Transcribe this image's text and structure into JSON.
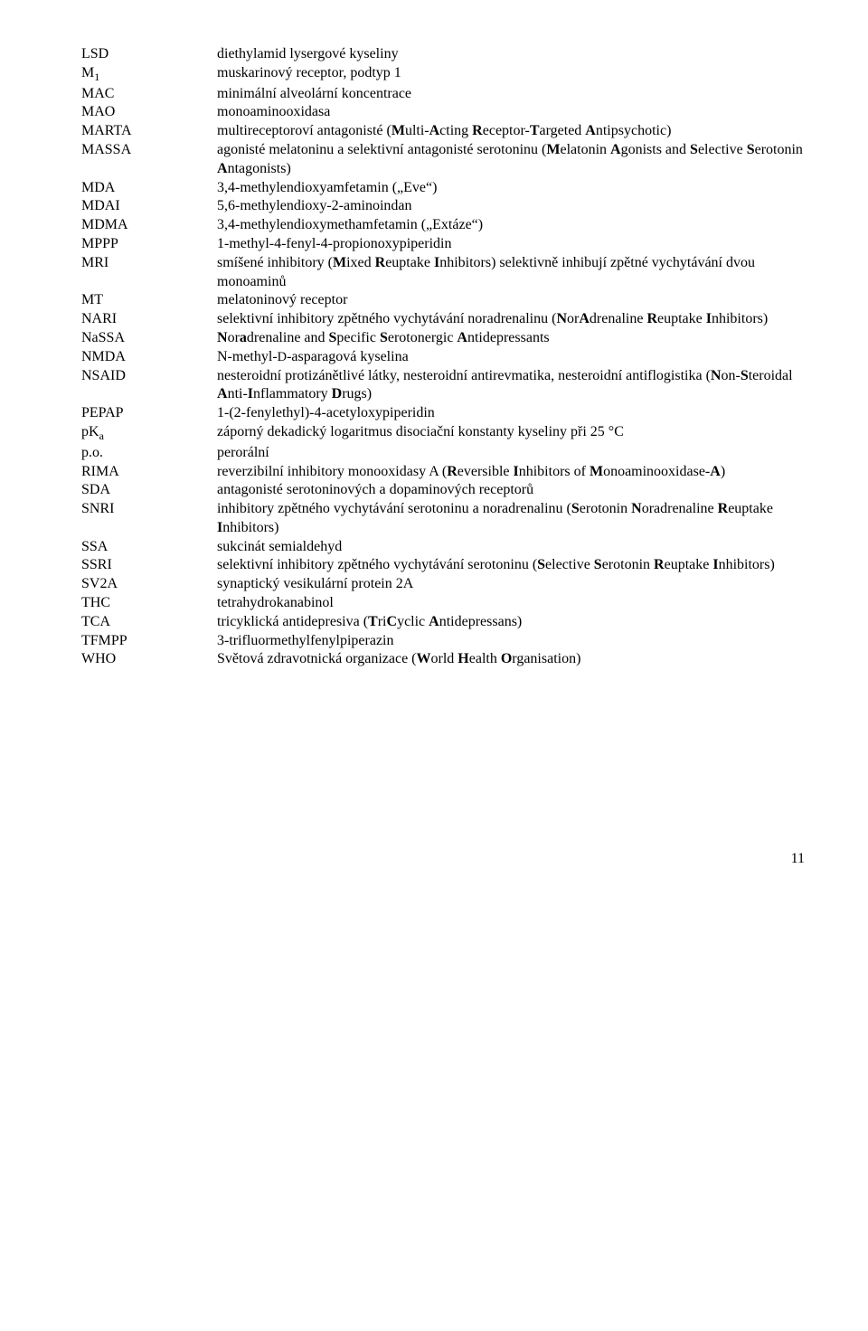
{
  "entries": [
    {
      "abbr": "LSD",
      "def": "diethylamid lysergové kyseliny"
    },
    {
      "abbr": "M<sub>1</sub>",
      "def": "muskarinový receptor, podtyp 1"
    },
    {
      "abbr": "MAC",
      "def": "minimální alveolární koncentrace"
    },
    {
      "abbr": "MAO",
      "def": "monoaminooxidasa"
    },
    {
      "abbr": "MARTA",
      "def": "multireceptoroví antagonisté (<b>M</b>ulti-<b>A</b>cting <b>R</b>eceptor-<b>T</b>argeted <b>A</b>ntipsychotic)"
    },
    {
      "abbr": "MASSA",
      "def": "agonisté melatoninu a selektivní antagonisté serotoninu (<b>M</b>elatonin <b>A</b>gonists and <b>S</b>elective <b>S</b>erotonin <b>A</b>ntagonists)"
    },
    {
      "abbr": "MDA",
      "def": "3,4-methylendioxyamfetamin („Eve“)"
    },
    {
      "abbr": "MDAI",
      "def": "5,6-methylendioxy-2-aminoindan"
    },
    {
      "abbr": "MDMA",
      "def": "3,4-methylendioxymethamfetamin („Extáze“)"
    },
    {
      "abbr": "MPPP",
      "def": "1-methyl-4-fenyl-4-propionoxypiperidin"
    },
    {
      "abbr": "MRI",
      "def": "smíšené inhibitory (<b>M</b>ixed <b>R</b>euptake <b>I</b>nhibitors) selektivně inhibují zpětné vychytávání dvou monoaminů"
    },
    {
      "abbr": "MT",
      "def": "melatoninový receptor"
    },
    {
      "abbr": "NARI",
      "def": "selektivní inhibitory zpětného vychytávání noradrenalinu (<b>N</b>or<b>A</b>drenaline <b>R</b>euptake <b>I</b>nhibitors)"
    },
    {
      "abbr": "NaSSA",
      "def": "<b>N</b>or<b>a</b>drenaline and <b>S</b>pecific <b>S</b>erotonergic <b>A</b>ntidepressants"
    },
    {
      "abbr": "NMDA",
      "def": "N-methyl-<span style=\"font-variant:small-caps;font-size:0.9em\">D</span>-asparagová kyselina"
    },
    {
      "abbr": "NSAID",
      "def": "nesteroidní protizánětlivé látky, nesteroidní antirevmatika, nesteroidní antiflogistika (<b>N</b>on-<b>S</b>teroidal <b>A</b>nti-<b>I</b>nflammatory <b>D</b>rugs)"
    },
    {
      "abbr": "PEPAP",
      "def": "1-(2-fenylethyl)-4-acetyloxypiperidin"
    },
    {
      "abbr": "pK<sub>a</sub>",
      "def": "záporný dekadický logaritmus disociační konstanty kyseliny při 25 °C"
    },
    {
      "abbr": "p.o.",
      "def": "perorální"
    },
    {
      "abbr": "RIMA",
      "def": "reverzibilní inhibitory monooxidasy A (<b>R</b>eversible <b>I</b>nhibitors of <b>M</b>onoaminooxidase-<b>A</b>)"
    },
    {
      "abbr": "SDA",
      "def": "antagonisté serotoninových a dopaminových receptorů"
    },
    {
      "abbr": "SNRI",
      "def": "inhibitory zpětného vychytávání serotoninu a noradrenalinu (<b>S</b>erotonin <b>N</b>oradrenaline <b>R</b>euptake <b>I</b>nhibitors)"
    },
    {
      "abbr": "SSA",
      "def": "sukcinát semialdehyd"
    },
    {
      "abbr": "SSRI",
      "def": "selektivní inhibitory zpětného vychytávání serotoninu (<b>S</b>elective <b>S</b>erotonin <b>R</b>euptake <b>I</b>nhibitors)"
    },
    {
      "abbr": "SV2A",
      "def": "synaptický vesikulární protein 2A"
    },
    {
      "abbr": "THC",
      "def": "tetrahydrokanabinol"
    },
    {
      "abbr": "TCA",
      "def": "tricyklická antidepresiva (<b>T</b>ri<b>C</b>yclic <b>A</b>ntidepressans)"
    },
    {
      "abbr": "TFMPP",
      "def": "3-trifluormethylfenylpiperazin"
    },
    {
      "abbr": "WHO",
      "def": "Světová zdravotnická organizace (<b>W</b>orld <b>H</b>ealth <b>O</b>rganisation)"
    }
  ],
  "page_number": "11"
}
